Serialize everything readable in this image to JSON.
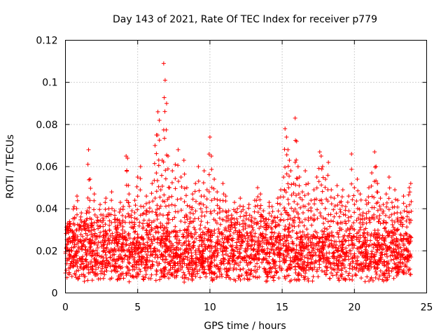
{
  "chart_data": {
    "type": "scatter",
    "title": "Day 143 of 2021, Rate Of TEC Index for receiver p779",
    "xlabel": "GPS time / hours",
    "ylabel": "ROTI / TECUs",
    "xlim": [
      0,
      25
    ],
    "ylim": [
      0,
      0.12
    ],
    "xticks": [
      0,
      5,
      10,
      15,
      20,
      25
    ],
    "xtick_labels": [
      "0",
      "5",
      "10",
      "15",
      "20",
      "25"
    ],
    "yticks": [
      0,
      0.02,
      0.04,
      0.06,
      0.08,
      0.1,
      0.12
    ],
    "ytick_labels": [
      "0",
      "0.02",
      "0.04",
      "0.06",
      "0.08",
      "0.1",
      "0.12"
    ],
    "grid": true,
    "marker": "plus",
    "color": "#ff0000",
    "series": [
      {
        "name": "ROTI",
        "note": "dense cloud of points 0.005-0.035 TECUs across 0-24 h; representative peaks listed",
        "x": [
          0.1,
          0.2,
          0.3,
          0.5,
          0.6,
          0.8,
          1.0,
          1.1,
          1.3,
          1.5,
          1.6,
          1.7,
          1.8,
          2.0,
          2.2,
          2.4,
          2.6,
          2.8,
          3.0,
          3.2,
          3.4,
          3.6,
          3.8,
          4.0,
          4.2,
          4.3,
          4.4,
          4.6,
          4.8,
          5.0,
          5.2,
          5.4,
          5.6,
          5.8,
          6.0,
          6.2,
          6.3,
          6.4,
          6.5,
          6.6,
          6.7,
          6.8,
          6.9,
          7.0,
          7.1,
          7.2,
          7.4,
          7.6,
          7.8,
          8.0,
          8.2,
          8.4,
          8.6,
          8.8,
          9.0,
          9.2,
          9.4,
          9.6,
          9.8,
          10.0,
          10.1,
          10.3,
          10.5,
          10.7,
          10.9,
          11.1,
          11.3,
          11.5,
          11.7,
          11.9,
          12.1,
          12.3,
          12.5,
          12.7,
          12.9,
          13.1,
          13.3,
          13.5,
          13.7,
          13.9,
          14.1,
          14.3,
          14.5,
          14.7,
          14.9,
          15.1,
          15.2,
          15.3,
          15.4,
          15.5,
          15.6,
          15.8,
          15.9,
          16.0,
          16.1,
          16.2,
          16.4,
          16.6,
          16.8,
          17.0,
          17.2,
          17.4,
          17.6,
          17.7,
          17.8,
          18.0,
          18.2,
          18.4,
          18.6,
          18.8,
          19.0,
          19.2,
          19.4,
          19.6,
          19.8,
          20.0,
          20.2,
          20.4,
          20.6,
          20.8,
          21.0,
          21.2,
          21.4,
          21.5,
          21.6,
          21.8,
          22.0,
          22.2,
          22.4,
          22.6,
          22.8,
          23.0,
          23.2,
          23.4,
          23.6,
          23.8,
          23.9
        ],
        "y": [
          0.031,
          0.029,
          0.033,
          0.026,
          0.041,
          0.046,
          0.032,
          0.038,
          0.034,
          0.039,
          0.068,
          0.054,
          0.035,
          0.047,
          0.036,
          0.042,
          0.037,
          0.045,
          0.04,
          0.048,
          0.039,
          0.035,
          0.043,
          0.041,
          0.065,
          0.064,
          0.047,
          0.039,
          0.044,
          0.055,
          0.06,
          0.041,
          0.046,
          0.043,
          0.052,
          0.07,
          0.075,
          0.086,
          0.082,
          0.049,
          0.063,
          0.109,
          0.101,
          0.09,
          0.065,
          0.05,
          0.058,
          0.061,
          0.068,
          0.055,
          0.063,
          0.05,
          0.041,
          0.047,
          0.052,
          0.06,
          0.046,
          0.058,
          0.049,
          0.074,
          0.065,
          0.054,
          0.048,
          0.044,
          0.052,
          0.046,
          0.039,
          0.037,
          0.043,
          0.04,
          0.045,
          0.041,
          0.038,
          0.042,
          0.036,
          0.044,
          0.05,
          0.047,
          0.039,
          0.035,
          0.043,
          0.041,
          0.036,
          0.045,
          0.049,
          0.055,
          0.078,
          0.074,
          0.068,
          0.063,
          0.058,
          0.052,
          0.083,
          0.072,
          0.06,
          0.055,
          0.048,
          0.058,
          0.052,
          0.044,
          0.049,
          0.055,
          0.067,
          0.065,
          0.06,
          0.054,
          0.062,
          0.049,
          0.045,
          0.051,
          0.043,
          0.049,
          0.041,
          0.046,
          0.066,
          0.05,
          0.054,
          0.047,
          0.038,
          0.044,
          0.05,
          0.057,
          0.067,
          0.06,
          0.052,
          0.045,
          0.042,
          0.047,
          0.055,
          0.043,
          0.049,
          0.044,
          0.038,
          0.046,
          0.041,
          0.05,
          0.052
        ]
      }
    ]
  }
}
